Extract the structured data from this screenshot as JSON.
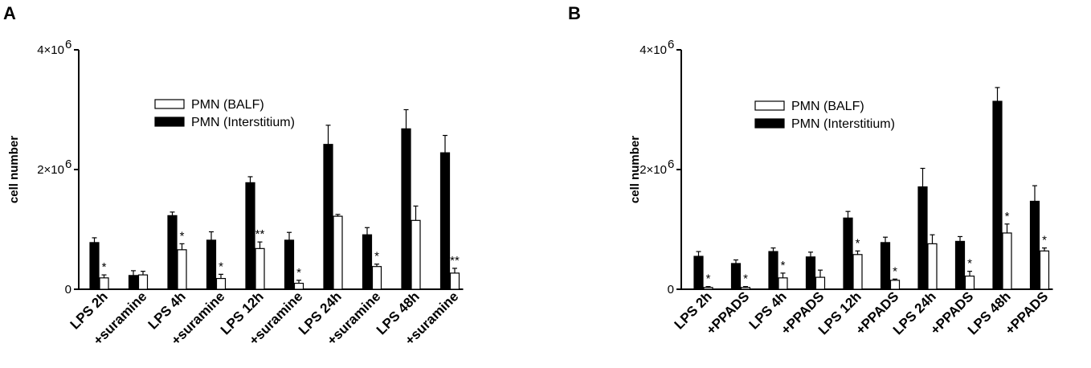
{
  "chart_data": [
    {
      "type": "bar",
      "panel": "A",
      "ylabel": "cell number",
      "yticks": [
        "0",
        "2×10",
        "4×10"
      ],
      "ytick_exp": "6",
      "ylim": [
        0,
        4000000
      ],
      "categories": [
        "LPS 2h",
        "+suramine",
        "LPS 4h",
        "+suramine",
        "LPS 12h",
        "+suramine",
        "LPS 24h",
        "+suramine",
        "LPS 48h",
        "+suramine"
      ],
      "series": [
        {
          "name": "PMN (Interstitium)",
          "fill": "#000000",
          "values": [
            780000,
            230000,
            1230000,
            820000,
            1780000,
            820000,
            2420000,
            910000,
            2680000,
            2280000
          ],
          "errors": [
            80000,
            80000,
            60000,
            140000,
            100000,
            130000,
            320000,
            120000,
            320000,
            290000
          ]
        },
        {
          "name": "PMN (BALF)",
          "fill": "#ffffff",
          "values": [
            190000,
            240000,
            660000,
            180000,
            680000,
            100000,
            1220000,
            380000,
            1150000,
            270000
          ],
          "errors": [
            50000,
            60000,
            100000,
            70000,
            110000,
            50000,
            30000,
            40000,
            240000,
            80000
          ]
        }
      ],
      "significance": [
        "*",
        "",
        "*",
        "*",
        "**",
        "*",
        "",
        "*",
        "",
        "**"
      ],
      "legend_position": "center"
    },
    {
      "type": "bar",
      "panel": "B",
      "ylabel": "cell number",
      "yticks": [
        "0",
        "2×10",
        "4×10"
      ],
      "ytick_exp": "6",
      "ylim": [
        0,
        4000000
      ],
      "categories": [
        "LPS 2h",
        "+PPADS",
        "LPS 4h",
        "+PPADS",
        "LPS 12h",
        "+PPADS",
        "LPS 24h",
        "+PPADS",
        "LPS 48h",
        "+PPADS"
      ],
      "series": [
        {
          "name": "PMN (Interstitium)",
          "fill": "#000000",
          "values": [
            550000,
            430000,
            630000,
            540000,
            1190000,
            780000,
            1710000,
            800000,
            3140000,
            1470000
          ],
          "errors": [
            80000,
            60000,
            60000,
            80000,
            110000,
            90000,
            310000,
            80000,
            230000,
            260000
          ]
        },
        {
          "name": "PMN (BALF)",
          "fill": "#ffffff",
          "values": [
            30000,
            30000,
            190000,
            200000,
            580000,
            150000,
            760000,
            220000,
            940000,
            640000
          ],
          "errors": [
            15000,
            15000,
            80000,
            120000,
            60000,
            20000,
            150000,
            80000,
            150000,
            50000
          ]
        }
      ],
      "significance": [
        "*",
        "*",
        "*",
        "",
        "*",
        "*",
        "",
        "*",
        "*",
        "*"
      ],
      "legend_position": "center"
    }
  ]
}
